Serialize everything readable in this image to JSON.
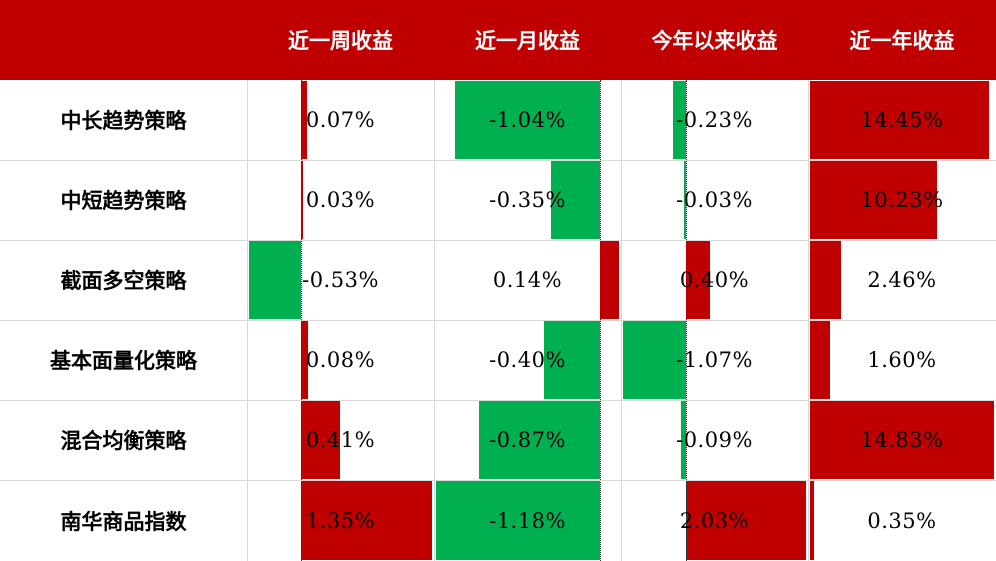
{
  "colors": {
    "header_bg": "#c00000",
    "header_text": "#ffffff",
    "positive": "#c00000",
    "negative": "#00b050"
  },
  "chart_data": {
    "type": "table",
    "columns": [
      "近一周收益",
      "近一月收益",
      "今年以来收益",
      "近一年收益"
    ],
    "rows": [
      {
        "label": "中长趋势策略",
        "values": [
          0.07,
          -1.04,
          -0.23,
          14.45
        ],
        "display": [
          "0.07%",
          "-1.04%",
          "-0.23%",
          "14.45%"
        ]
      },
      {
        "label": "中短趋势策略",
        "values": [
          0.03,
          -0.35,
          -0.03,
          10.23
        ],
        "display": [
          "0.03%",
          "-0.35%",
          "-0.03%",
          "10.23%"
        ]
      },
      {
        "label": "截面多空策略",
        "values": [
          -0.53,
          0.14,
          0.4,
          2.46
        ],
        "display": [
          "-0.53%",
          "0.14%",
          "0.40%",
          "2.46%"
        ]
      },
      {
        "label": "基本面量化策略",
        "values": [
          0.08,
          -0.4,
          -1.07,
          1.6
        ],
        "display": [
          "0.08%",
          "-0.40%",
          "-1.07%",
          "1.60%"
        ]
      },
      {
        "label": "混合均衡策略",
        "values": [
          0.41,
          -0.87,
          -0.09,
          14.83
        ],
        "display": [
          "0.41%",
          "-0.87%",
          "-0.09%",
          "14.83%"
        ]
      },
      {
        "label": "南华商品指数",
        "values": [
          1.35,
          -1.18,
          2.03,
          0.35
        ],
        "display": [
          "1.35%",
          "-1.18%",
          "2.03%",
          "0.35%"
        ]
      }
    ]
  }
}
